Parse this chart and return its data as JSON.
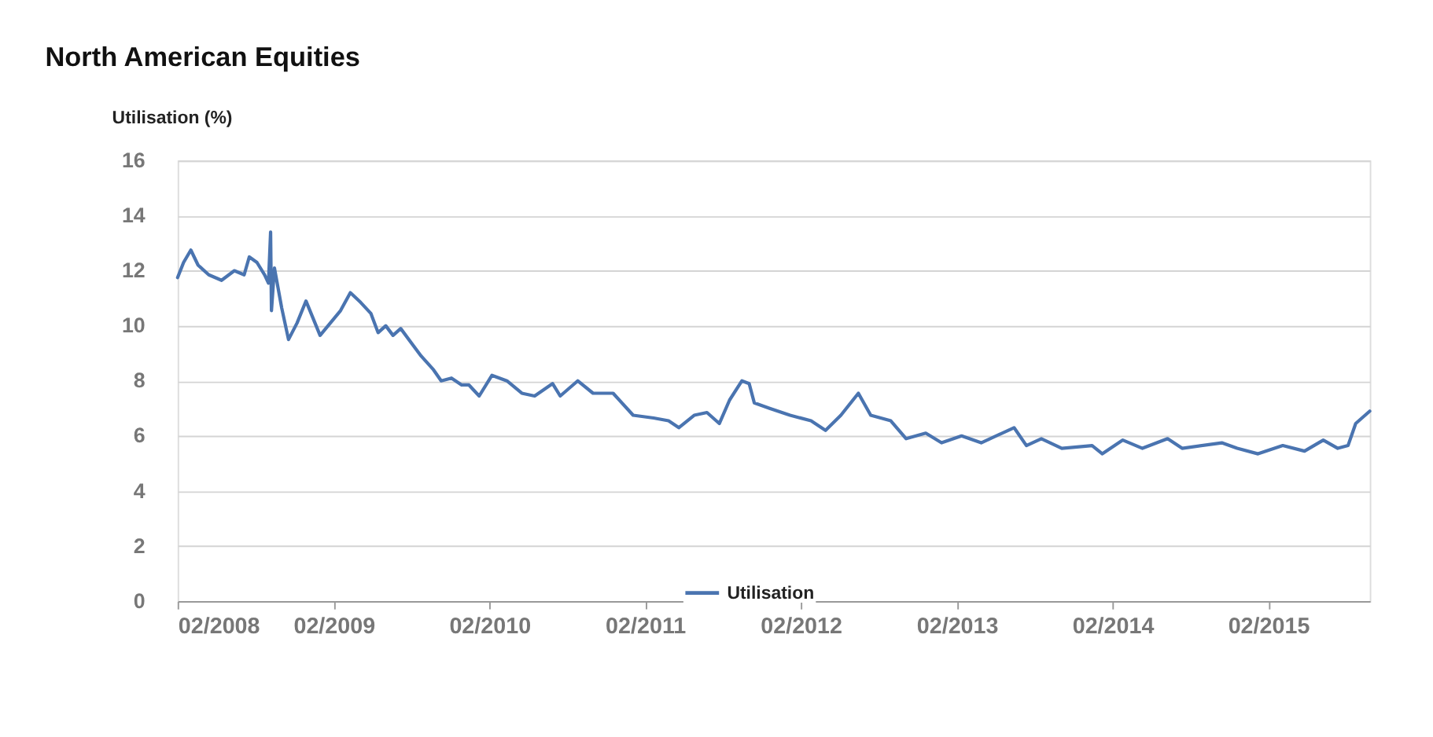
{
  "chart_data": {
    "type": "line",
    "title": "North American Equities",
    "ylabel": "Utilisation (%)",
    "x": [
      "2008-02-01",
      "2008-02-15",
      "2008-03-03",
      "2008-03-20",
      "2008-04-14",
      "2008-05-14",
      "2008-06-13",
      "2008-07-06",
      "2008-07-18",
      "2008-08-05",
      "2008-08-23",
      "2008-09-01",
      "2008-09-06",
      "2008-09-08",
      "2008-09-15",
      "2008-10-02",
      "2008-10-18",
      "2008-11-07",
      "2008-11-28",
      "2008-12-31",
      "2009-01-24",
      "2009-02-17",
      "2009-03-12",
      "2009-04-05",
      "2009-04-29",
      "2009-05-16",
      "2009-06-03",
      "2009-06-20",
      "2009-07-08",
      "2009-08-01",
      "2009-08-25",
      "2009-09-23",
      "2009-10-11",
      "2009-11-04",
      "2009-11-28",
      "2009-12-15",
      "2010-01-08",
      "2010-02-07",
      "2010-03-14",
      "2010-04-18",
      "2010-05-18",
      "2010-06-29",
      "2010-07-17",
      "2010-08-27",
      "2010-10-02",
      "2010-11-18",
      "2011-01-04",
      "2011-02-21",
      "2011-03-28",
      "2011-04-21",
      "2011-05-27",
      "2011-06-26",
      "2011-07-25",
      "2011-08-18",
      "2011-09-16",
      "2011-10-03",
      "2011-10-15",
      "2011-11-20",
      "2012-01-07",
      "2012-02-25",
      "2012-03-30",
      "2012-05-05",
      "2012-06-15",
      "2012-07-14",
      "2012-08-30",
      "2012-10-05",
      "2012-11-20",
      "2012-12-27",
      "2013-02-12",
      "2013-03-30",
      "2013-06-15",
      "2013-07-14",
      "2013-08-18",
      "2013-10-05",
      "2013-12-15",
      "2014-01-08",
      "2014-02-25",
      "2014-04-12",
      "2014-06-10",
      "2014-07-14",
      "2014-10-15",
      "2014-11-20",
      "2015-01-08",
      "2015-03-07",
      "2015-04-27",
      "2015-06-10",
      "2015-07-14",
      "2015-08-07",
      "2015-08-25",
      "2015-09-27"
    ],
    "series": [
      {
        "name": "Utilisation",
        "color": "#4a74b0",
        "values": [
          11.75,
          12.3,
          12.75,
          12.2,
          11.85,
          11.65,
          12.0,
          11.85,
          12.5,
          12.3,
          11.85,
          11.55,
          13.4,
          10.55,
          12.1,
          10.65,
          9.5,
          10.1,
          10.9,
          9.65,
          10.1,
          10.55,
          11.2,
          10.85,
          10.45,
          9.75,
          10.0,
          9.65,
          9.9,
          9.4,
          8.9,
          8.4,
          8.0,
          8.1,
          7.85,
          7.85,
          7.45,
          8.2,
          8.0,
          7.55,
          7.45,
          7.9,
          7.45,
          8.0,
          7.55,
          7.55,
          6.75,
          6.65,
          6.55,
          6.3,
          6.75,
          6.85,
          6.45,
          7.3,
          8.0,
          7.9,
          7.2,
          7.0,
          6.75,
          6.55,
          6.2,
          6.75,
          7.55,
          6.75,
          6.55,
          5.9,
          6.1,
          5.75,
          6.0,
          5.75,
          6.3,
          5.65,
          5.9,
          5.55,
          5.65,
          5.35,
          5.85,
          5.55,
          5.9,
          5.55,
          5.75,
          5.55,
          5.35,
          5.65,
          5.45,
          5.85,
          5.55,
          5.65,
          6.45,
          6.9
        ]
      }
    ],
    "xlim": [
      "2008-02-01",
      "2015-09-27"
    ],
    "xticks": [
      {
        "value": "2008-02-01",
        "label": "02/2008"
      },
      {
        "value": "2009-02-01",
        "label": "02/2009"
      },
      {
        "value": "2010-02-01",
        "label": "02/2010"
      },
      {
        "value": "2011-02-01",
        "label": "02/2011"
      },
      {
        "value": "2012-02-01",
        "label": "02/2012"
      },
      {
        "value": "2013-02-01",
        "label": "02/2013"
      },
      {
        "value": "2014-02-01",
        "label": "02/2014"
      },
      {
        "value": "2015-02-01",
        "label": "02/2015"
      }
    ],
    "ylim": [
      0,
      16
    ],
    "yticks": [
      0,
      2,
      4,
      6,
      8,
      10,
      12,
      14,
      16
    ],
    "grid": "y",
    "legend": "bottom",
    "line_style": "solid",
    "marker": "none"
  }
}
